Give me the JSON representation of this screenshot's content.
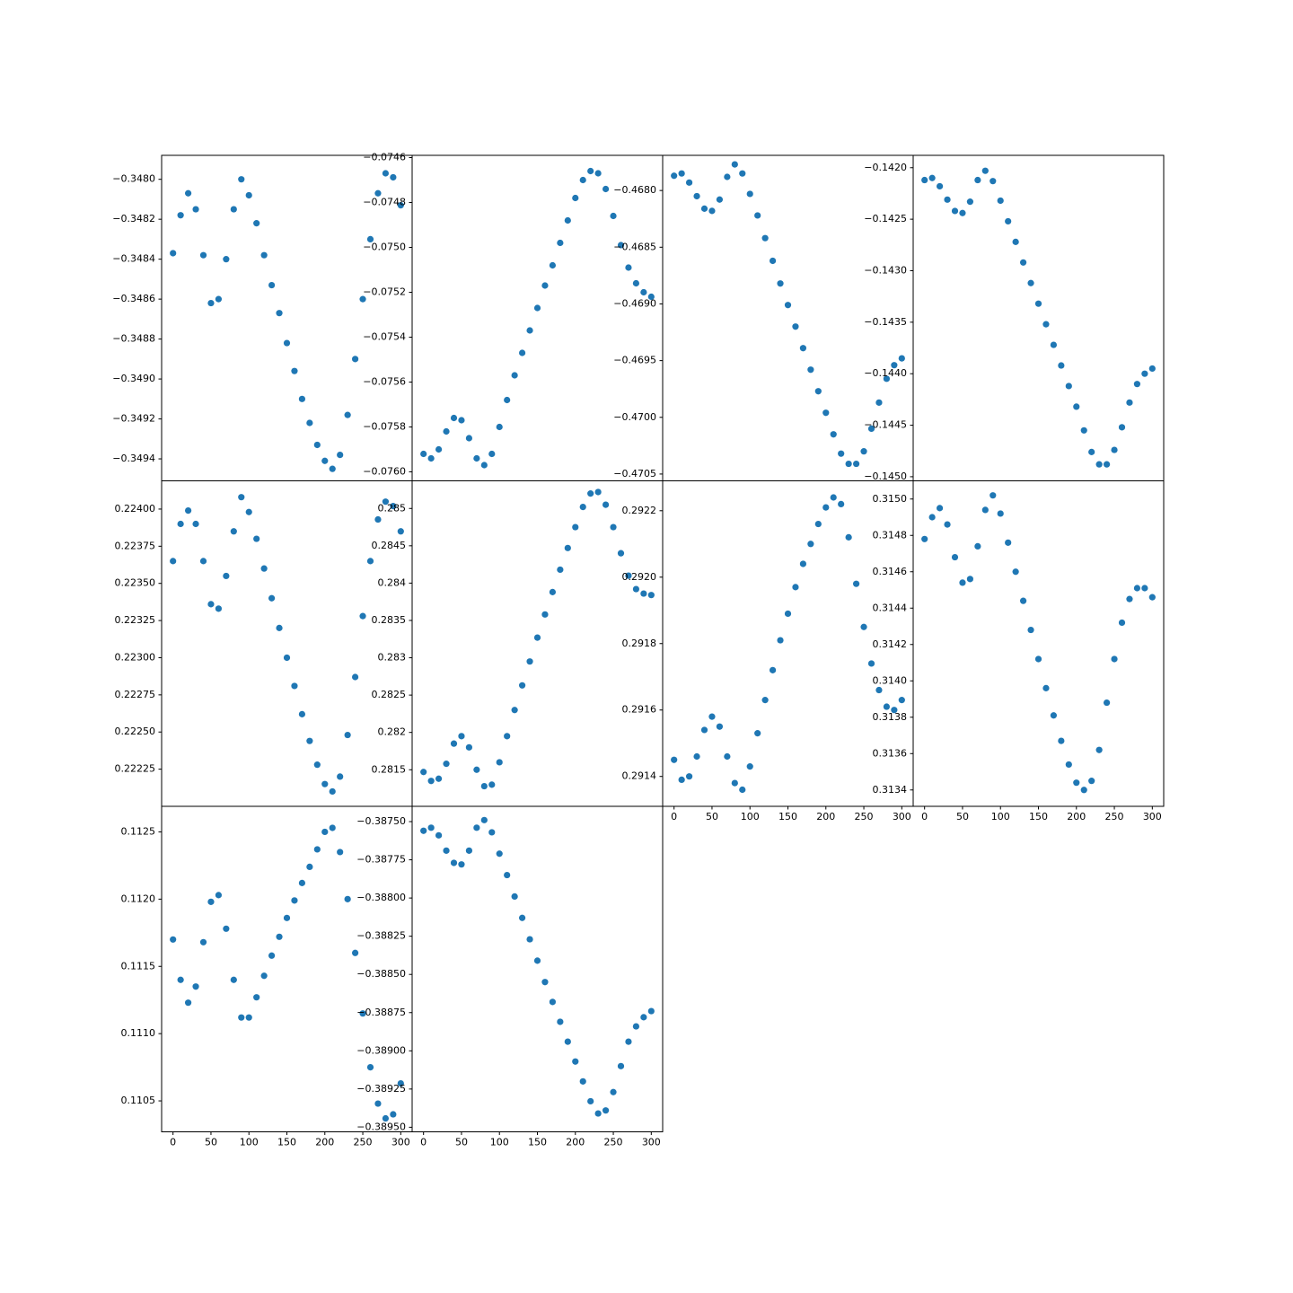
{
  "chart_data": [
    {
      "type": "scatter",
      "color": "#1f77b4",
      "xlim": [
        -15,
        315
      ],
      "ylim": [
        -0.34951,
        -0.34788
      ],
      "yticks": [
        {
          "value": -0.3494,
          "label": "−0.3494"
        },
        {
          "value": -0.3492,
          "label": "−0.3492"
        },
        {
          "value": -0.349,
          "label": "−0.3490"
        },
        {
          "value": -0.3488,
          "label": "−0.3488"
        },
        {
          "value": -0.3486,
          "label": "−0.3486"
        },
        {
          "value": -0.3484,
          "label": "−0.3484"
        },
        {
          "value": -0.3482,
          "label": "−0.3482"
        },
        {
          "value": -0.348,
          "label": "−0.3480"
        }
      ],
      "x": [
        0,
        10,
        20,
        30,
        40,
        50,
        60,
        70,
        80,
        90,
        100,
        110,
        120,
        130,
        140,
        150,
        160,
        170,
        180,
        190,
        200,
        210,
        220,
        230,
        240,
        250,
        260,
        270,
        280,
        290,
        300
      ],
      "values": [
        -0.34837,
        -0.34818,
        -0.34807,
        -0.34815,
        -0.34838,
        -0.34862,
        -0.3486,
        -0.3484,
        -0.34815,
        -0.348,
        -0.34808,
        -0.34822,
        -0.34838,
        -0.34853,
        -0.34867,
        -0.34882,
        -0.34896,
        -0.3491,
        -0.34922,
        -0.34933,
        -0.34941,
        -0.34945,
        -0.34938,
        -0.34918,
        -0.3489,
        -0.3486,
        -0.3483,
        -0.34807,
        -0.34797,
        -0.34799,
        -0.34813
      ]
    },
    {
      "type": "scatter",
      "color": "#1f77b4",
      "xlim": [
        -15,
        315
      ],
      "ylim": [
        -0.07604,
        -0.07459
      ],
      "yticks": [
        {
          "value": -0.076,
          "label": "−0.0760"
        },
        {
          "value": -0.0758,
          "label": "−0.0758"
        },
        {
          "value": -0.0756,
          "label": "−0.0756"
        },
        {
          "value": -0.0754,
          "label": "−0.0754"
        },
        {
          "value": -0.0752,
          "label": "−0.0752"
        },
        {
          "value": -0.075,
          "label": "−0.0750"
        },
        {
          "value": -0.0748,
          "label": "−0.0748"
        },
        {
          "value": -0.0746,
          "label": "−0.0746"
        }
      ],
      "x": [
        0,
        10,
        20,
        30,
        40,
        50,
        60,
        70,
        80,
        90,
        100,
        110,
        120,
        130,
        140,
        150,
        160,
        170,
        180,
        190,
        200,
        210,
        220,
        230,
        240,
        250,
        260,
        270,
        280,
        290,
        300
      ],
      "values": [
        -0.07592,
        -0.07594,
        -0.0759,
        -0.07582,
        -0.07576,
        -0.07577,
        -0.07585,
        -0.07594,
        -0.07597,
        -0.07592,
        -0.0758,
        -0.07568,
        -0.07557,
        -0.07547,
        -0.07537,
        -0.07527,
        -0.07517,
        -0.07508,
        -0.07498,
        -0.07488,
        -0.07478,
        -0.0747,
        -0.07466,
        -0.07467,
        -0.07474,
        -0.07486,
        -0.07499,
        -0.07509,
        -0.07516,
        -0.0752,
        -0.07522
      ]
    },
    {
      "type": "scatter",
      "color": "#1f77b4",
      "xlim": [
        -15,
        315
      ],
      "ylim": [
        -0.47056,
        -0.46769
      ],
      "yticks": [
        {
          "value": -0.4705,
          "label": "−0.4705"
        },
        {
          "value": -0.47,
          "label": "−0.4700"
        },
        {
          "value": -0.4695,
          "label": "−0.4695"
        },
        {
          "value": -0.469,
          "label": "−0.4690"
        },
        {
          "value": -0.4685,
          "label": "−0.4685"
        },
        {
          "value": -0.468,
          "label": "−0.4680"
        }
      ],
      "x": [
        0,
        10,
        20,
        30,
        40,
        50,
        60,
        70,
        80,
        90,
        100,
        110,
        120,
        130,
        140,
        150,
        160,
        170,
        180,
        190,
        200,
        210,
        220,
        230,
        240,
        250,
        260,
        270,
        280,
        290,
        300
      ],
      "values": [
        -0.46787,
        -0.46785,
        -0.46793,
        -0.46805,
        -0.46816,
        -0.46818,
        -0.46808,
        -0.46788,
        -0.46777,
        -0.46785,
        -0.46803,
        -0.46822,
        -0.46842,
        -0.46862,
        -0.46882,
        -0.46901,
        -0.4692,
        -0.46939,
        -0.46958,
        -0.46977,
        -0.46996,
        -0.47015,
        -0.47032,
        -0.47041,
        -0.47041,
        -0.4703,
        -0.4701,
        -0.46987,
        -0.46966,
        -0.46954,
        -0.46948
      ]
    },
    {
      "type": "scatter",
      "color": "#1f77b4",
      "xlim": [
        -15,
        315
      ],
      "ylim": [
        -0.14504,
        -0.14188
      ],
      "yticks": [
        {
          "value": -0.145,
          "label": "−0.1450"
        },
        {
          "value": -0.1445,
          "label": "−0.1445"
        },
        {
          "value": -0.144,
          "label": "−0.1440"
        },
        {
          "value": -0.1435,
          "label": "−0.1435"
        },
        {
          "value": -0.143,
          "label": "−0.1430"
        },
        {
          "value": -0.1425,
          "label": "−0.1425"
        },
        {
          "value": -0.142,
          "label": "−0.1420"
        }
      ],
      "x": [
        0,
        10,
        20,
        30,
        40,
        50,
        60,
        70,
        80,
        90,
        100,
        110,
        120,
        130,
        140,
        150,
        160,
        170,
        180,
        190,
        200,
        210,
        220,
        230,
        240,
        250,
        260,
        270,
        280,
        290,
        300
      ],
      "values": [
        -0.14212,
        -0.1421,
        -0.14218,
        -0.14231,
        -0.14242,
        -0.14244,
        -0.14233,
        -0.14212,
        -0.14203,
        -0.14213,
        -0.14232,
        -0.14252,
        -0.14272,
        -0.14292,
        -0.14312,
        -0.14332,
        -0.14352,
        -0.14372,
        -0.14392,
        -0.14412,
        -0.14432,
        -0.14455,
        -0.14476,
        -0.14488,
        -0.14488,
        -0.14474,
        -0.14452,
        -0.14428,
        -0.1441,
        -0.144,
        -0.14395
      ]
    },
    {
      "type": "scatter",
      "color": "#1f77b4",
      "xlim": [
        -15,
        315
      ],
      "ylim": [
        0.222,
        0.22419
      ],
      "yticks": [
        {
          "value": 0.22225,
          "label": "0.22225"
        },
        {
          "value": 0.2225,
          "label": "0.22250"
        },
        {
          "value": 0.22275,
          "label": "0.22275"
        },
        {
          "value": 0.223,
          "label": "0.22300"
        },
        {
          "value": 0.22325,
          "label": "0.22325"
        },
        {
          "value": 0.2235,
          "label": "0.22350"
        },
        {
          "value": 0.22375,
          "label": "0.22375"
        },
        {
          "value": 0.224,
          "label": "0.22400"
        }
      ],
      "x": [
        0,
        10,
        20,
        30,
        40,
        50,
        60,
        70,
        80,
        90,
        100,
        110,
        120,
        130,
        140,
        150,
        160,
        170,
        180,
        190,
        200,
        210,
        220,
        230,
        240,
        250,
        260,
        270,
        280,
        290,
        300
      ],
      "values": [
        0.22365,
        0.2239,
        0.22399,
        0.2239,
        0.22365,
        0.22336,
        0.22333,
        0.22355,
        0.22385,
        0.22408,
        0.22398,
        0.2238,
        0.2236,
        0.2234,
        0.2232,
        0.223,
        0.22281,
        0.22262,
        0.22244,
        0.22228,
        0.22215,
        0.2221,
        0.2222,
        0.22248,
        0.22287,
        0.22328,
        0.22365,
        0.22393,
        0.22405,
        0.22402,
        0.22385
      ]
    },
    {
      "type": "scatter",
      "color": "#1f77b4",
      "xlim": [
        -15,
        315
      ],
      "ylim": [
        0.28101,
        0.28537
      ],
      "yticks": [
        0.2815,
        0.282,
        0.2825,
        0.283,
        0.2835,
        0.284,
        0.2845,
        0.285
      ],
      "x": [
        0,
        10,
        20,
        30,
        40,
        50,
        60,
        70,
        80,
        90,
        100,
        110,
        120,
        130,
        140,
        150,
        160,
        170,
        180,
        190,
        200,
        210,
        220,
        230,
        240,
        250,
        260,
        270,
        280,
        290,
        300
      ],
      "values": [
        0.28147,
        0.28135,
        0.28138,
        0.28158,
        0.28185,
        0.28195,
        0.2818,
        0.2815,
        0.28128,
        0.2813,
        0.2816,
        0.28195,
        0.2823,
        0.28263,
        0.28295,
        0.28327,
        0.28358,
        0.28388,
        0.28418,
        0.28447,
        0.28475,
        0.28502,
        0.2852,
        0.28522,
        0.28505,
        0.28475,
        0.2844,
        0.2841,
        0.28392,
        0.28386,
        0.28384
      ]
    },
    {
      "type": "scatter",
      "color": "#1f77b4",
      "xlim": [
        -15,
        315
      ],
      "ylim": [
        0.29131,
        0.29229
      ],
      "yticks": [
        0.2914,
        0.2916,
        0.2918,
        {
          "value": 0.292,
          "label": "0.2920"
        },
        0.2922
      ],
      "xticks": [
        0,
        50,
        100,
        150,
        200,
        250,
        300
      ],
      "x": [
        0,
        10,
        20,
        30,
        40,
        50,
        60,
        70,
        80,
        90,
        100,
        110,
        120,
        130,
        140,
        150,
        160,
        170,
        180,
        190,
        200,
        210,
        220,
        230,
        240,
        250,
        260,
        270,
        280,
        290,
        300
      ],
      "values": [
        0.29145,
        0.29139,
        0.2914,
        0.29146,
        0.29154,
        0.29158,
        0.29155,
        0.29146,
        0.29138,
        0.29136,
        0.29143,
        0.29153,
        0.29163,
        0.29172,
        0.29181,
        0.29189,
        0.29197,
        0.29204,
        0.2921,
        0.29216,
        0.29221,
        0.29224,
        0.29222,
        0.29212,
        0.29198,
        0.29185,
        0.29174,
        0.29166,
        0.29161,
        0.2916,
        0.29163
      ]
    },
    {
      "type": "scatter",
      "color": "#1f77b4",
      "xlim": [
        -15,
        315
      ],
      "ylim": [
        0.31331,
        0.3151
      ],
      "yticks": [
        0.3134,
        0.3136,
        0.3138,
        {
          "value": 0.314,
          "label": "0.3140"
        },
        0.3142,
        0.3144,
        0.3146,
        0.3148,
        {
          "value": 0.315,
          "label": "0.3150"
        }
      ],
      "xticks": [
        0,
        50,
        100,
        150,
        200,
        250,
        300
      ],
      "x": [
        0,
        10,
        20,
        30,
        40,
        50,
        60,
        70,
        80,
        90,
        100,
        110,
        120,
        130,
        140,
        150,
        160,
        170,
        180,
        190,
        200,
        210,
        220,
        230,
        240,
        250,
        260,
        270,
        280,
        290,
        300
      ],
      "values": [
        0.31478,
        0.3149,
        0.31495,
        0.31486,
        0.31468,
        0.31454,
        0.31456,
        0.31474,
        0.31494,
        0.31502,
        0.31492,
        0.31476,
        0.3146,
        0.31444,
        0.31428,
        0.31412,
        0.31396,
        0.31381,
        0.31367,
        0.31354,
        0.31344,
        0.3134,
        0.31345,
        0.31362,
        0.31388,
        0.31412,
        0.31432,
        0.31445,
        0.31451,
        0.31451,
        0.31446
      ]
    },
    {
      "type": "scatter",
      "color": "#1f77b4",
      "xlim": [
        -15,
        315
      ],
      "ylim": [
        0.11027,
        0.11269
      ],
      "yticks": [
        0.1105,
        {
          "value": 0.111,
          "label": "0.1110"
        },
        0.1115,
        {
          "value": 0.112,
          "label": "0.1120"
        },
        0.1125
      ],
      "xticks": [
        0,
        50,
        100,
        150,
        200,
        250,
        300
      ],
      "x": [
        0,
        10,
        20,
        30,
        40,
        50,
        60,
        70,
        80,
        90,
        100,
        110,
        120,
        130,
        140,
        150,
        160,
        170,
        180,
        190,
        200,
        210,
        220,
        230,
        240,
        250,
        260,
        270,
        280,
        290,
        300
      ],
      "values": [
        0.1117,
        0.1114,
        0.11123,
        0.11135,
        0.11168,
        0.11198,
        0.11203,
        0.11178,
        0.1114,
        0.11112,
        0.11112,
        0.11127,
        0.11143,
        0.11158,
        0.11172,
        0.11186,
        0.11199,
        0.11212,
        0.11224,
        0.11237,
        0.1125,
        0.11253,
        0.11235,
        0.112,
        0.1116,
        0.11115,
        0.11075,
        0.11048,
        0.11037,
        0.1104,
        0.11063
      ]
    },
    {
      "type": "scatter",
      "color": "#1f77b4",
      "xlim": [
        -15,
        315
      ],
      "ylim": [
        -0.38953,
        -0.3874
      ],
      "yticks": [
        {
          "value": -0.3895,
          "label": "−0.38950"
        },
        {
          "value": -0.38925,
          "label": "−0.38925"
        },
        {
          "value": -0.389,
          "label": "−0.38900"
        },
        {
          "value": -0.38875,
          "label": "−0.38875"
        },
        {
          "value": -0.3885,
          "label": "−0.38850"
        },
        {
          "value": -0.38825,
          "label": "−0.38825"
        },
        {
          "value": -0.388,
          "label": "−0.38800"
        },
        {
          "value": -0.38775,
          "label": "−0.38775"
        },
        {
          "value": -0.3875,
          "label": "−0.38750"
        }
      ],
      "xticks": [
        0,
        50,
        100,
        150,
        200,
        250,
        300
      ],
      "x": [
        0,
        10,
        20,
        30,
        40,
        50,
        60,
        70,
        80,
        90,
        100,
        110,
        120,
        130,
        140,
        150,
        160,
        170,
        180,
        190,
        200,
        210,
        220,
        230,
        240,
        250,
        260,
        270,
        280,
        290,
        300
      ],
      "values": [
        -0.38756,
        -0.38754,
        -0.38759,
        -0.38769,
        -0.38777,
        -0.38778,
        -0.38769,
        -0.38754,
        -0.38749,
        -0.38757,
        -0.38771,
        -0.38785,
        -0.38799,
        -0.38813,
        -0.38827,
        -0.38841,
        -0.38855,
        -0.38868,
        -0.38881,
        -0.38894,
        -0.38907,
        -0.3892,
        -0.38933,
        -0.38941,
        -0.38939,
        -0.38927,
        -0.3891,
        -0.38894,
        -0.38884,
        -0.38878,
        -0.38874
      ]
    }
  ]
}
